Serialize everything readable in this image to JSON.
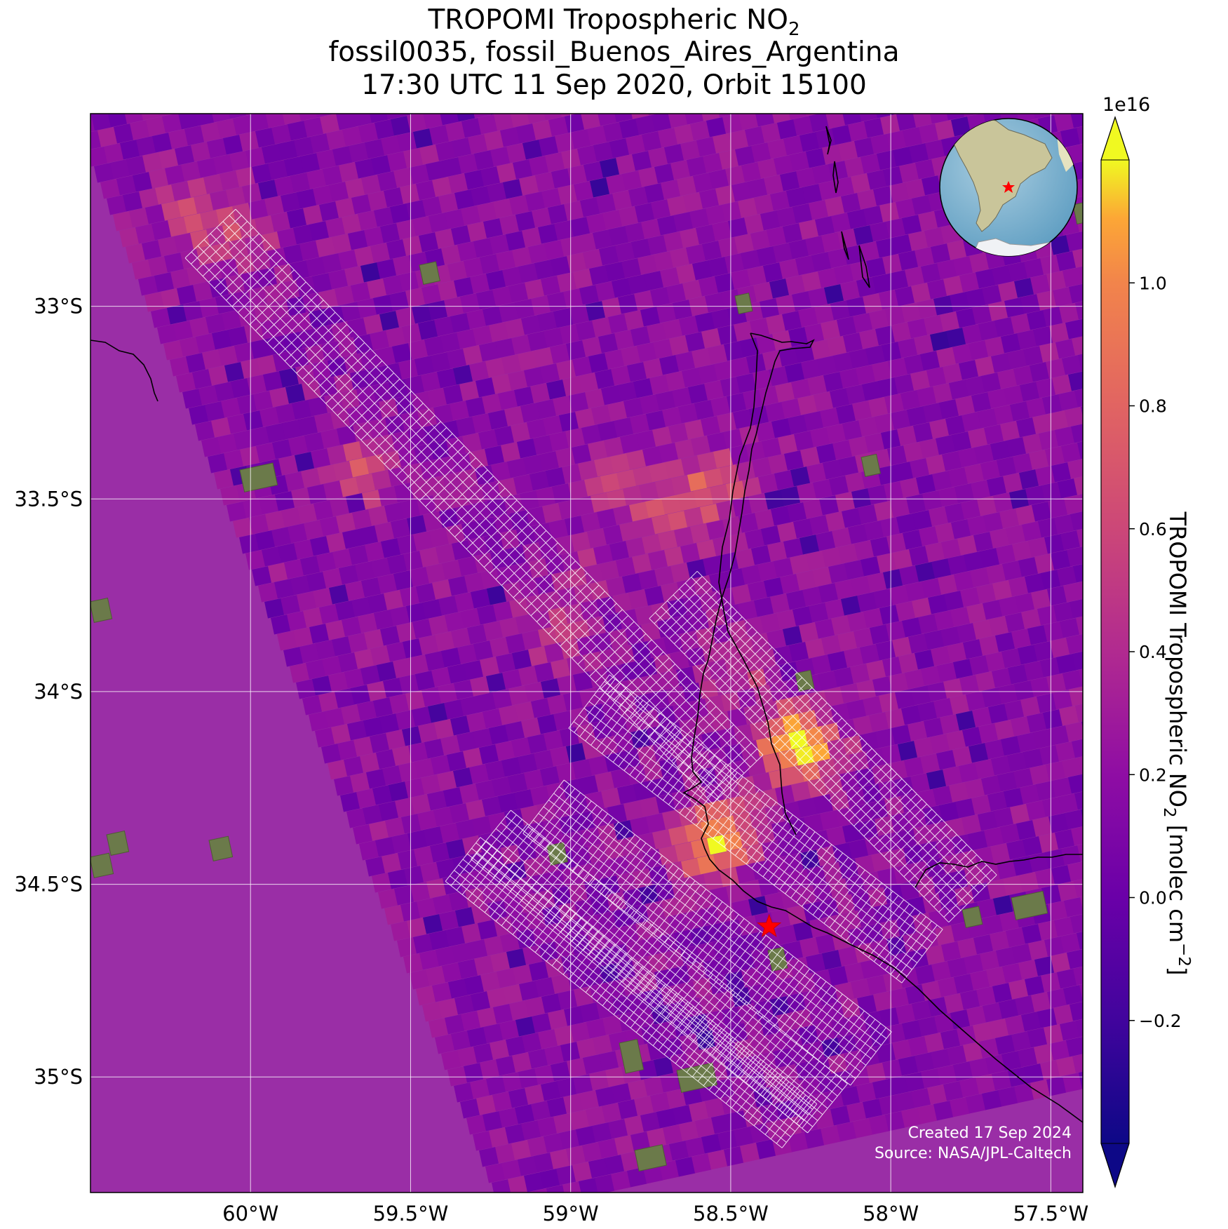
{
  "title": {
    "line1_prefix": "TROPOMI Tropospheric NO",
    "line1_sub": "2",
    "line2": "fossil0035, fossil_Buenos_Aires_Argentina",
    "line3": "17:30 UTC 11 Sep 2020, Orbit 15100"
  },
  "map": {
    "lon_range": [
      -60.5,
      -57.4
    ],
    "lat_range": [
      -35.3,
      -32.5
    ],
    "lon_ticks": [
      {
        "value": -60.0,
        "label": "60°W"
      },
      {
        "value": -59.5,
        "label": "59.5°W"
      },
      {
        "value": -59.0,
        "label": "59°W"
      },
      {
        "value": -58.5,
        "label": "58.5°W"
      },
      {
        "value": -58.0,
        "label": "58°W"
      },
      {
        "value": -57.5,
        "label": "57.5°W"
      }
    ],
    "lat_ticks": [
      {
        "value": -33.0,
        "label": "33°S"
      },
      {
        "value": -33.5,
        "label": "33.5°S"
      },
      {
        "value": -34.0,
        "label": "34°S"
      },
      {
        "value": -34.5,
        "label": "34.5°S"
      },
      {
        "value": -35.0,
        "label": "35°S"
      }
    ],
    "gridlines": true,
    "background_color": "#9a2ea6",
    "target_marker": {
      "lon": -58.38,
      "lat": -34.61,
      "symbol": "star",
      "color": "#ff0000"
    },
    "inset_globe": "top-right",
    "footer_created": "Created 17 Sep 2024",
    "footer_source": "Source: NASA/JPL-Caltech"
  },
  "colorbar": {
    "colormap": "plasma",
    "exponent_label": "1e16",
    "range": [
      -0.4,
      1.2
    ],
    "ticks": [
      {
        "value": -0.2,
        "label": "−0.2"
      },
      {
        "value": 0.0,
        "label": "0.0"
      },
      {
        "value": 0.2,
        "label": "0.2"
      },
      {
        "value": 0.4,
        "label": "0.4"
      },
      {
        "value": 0.6,
        "label": "0.6"
      },
      {
        "value": 0.8,
        "label": "0.8"
      },
      {
        "value": 1.0,
        "label": "1.0"
      }
    ],
    "label_prefix": "TROPOMI Tropospheric NO",
    "label_sub": "2",
    "label_suffix": " [molec cm",
    "label_sup": "−2",
    "label_end": "]",
    "extend": "both"
  }
}
